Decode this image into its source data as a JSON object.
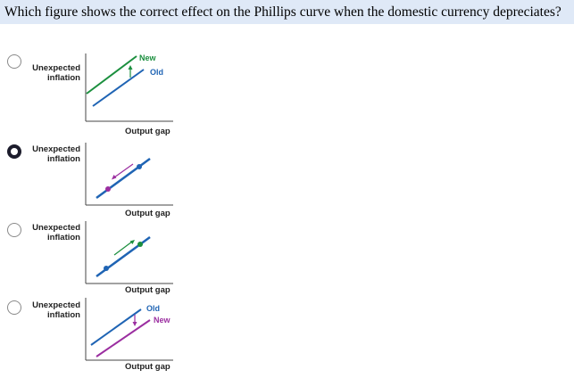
{
  "question": "Which figure shows the correct effect on the Phillips curve when the domestic currency depreciates?",
  "options": [
    {
      "selected": false,
      "y_label_line1": "Unexpected",
      "y_label_line2": "inflation",
      "x_label": "Output gap",
      "label_top": "New",
      "label_bottom": "Old",
      "label_top_color": "#1b8f3e",
      "label_bottom_color": "#1f64b4"
    },
    {
      "selected": true,
      "y_label_line1": "Unexpected",
      "y_label_line2": "inflation",
      "x_label": "Output gap"
    },
    {
      "selected": false,
      "y_label_line1": "Unexpected",
      "y_label_line2": "inflation",
      "x_label": "Output gap"
    },
    {
      "selected": false,
      "y_label_line1": "Unexpected",
      "y_label_line2": "inflation",
      "x_label": "Output gap",
      "label_top": "Old",
      "label_bottom": "New",
      "label_top_color": "#1f64b4",
      "label_bottom_color": "#9b2ea0"
    }
  ],
  "colors": {
    "blue": "#1f64b4",
    "green": "#1b8f3e",
    "purple": "#9b2ea0",
    "highlight": "#dfe9f7"
  }
}
